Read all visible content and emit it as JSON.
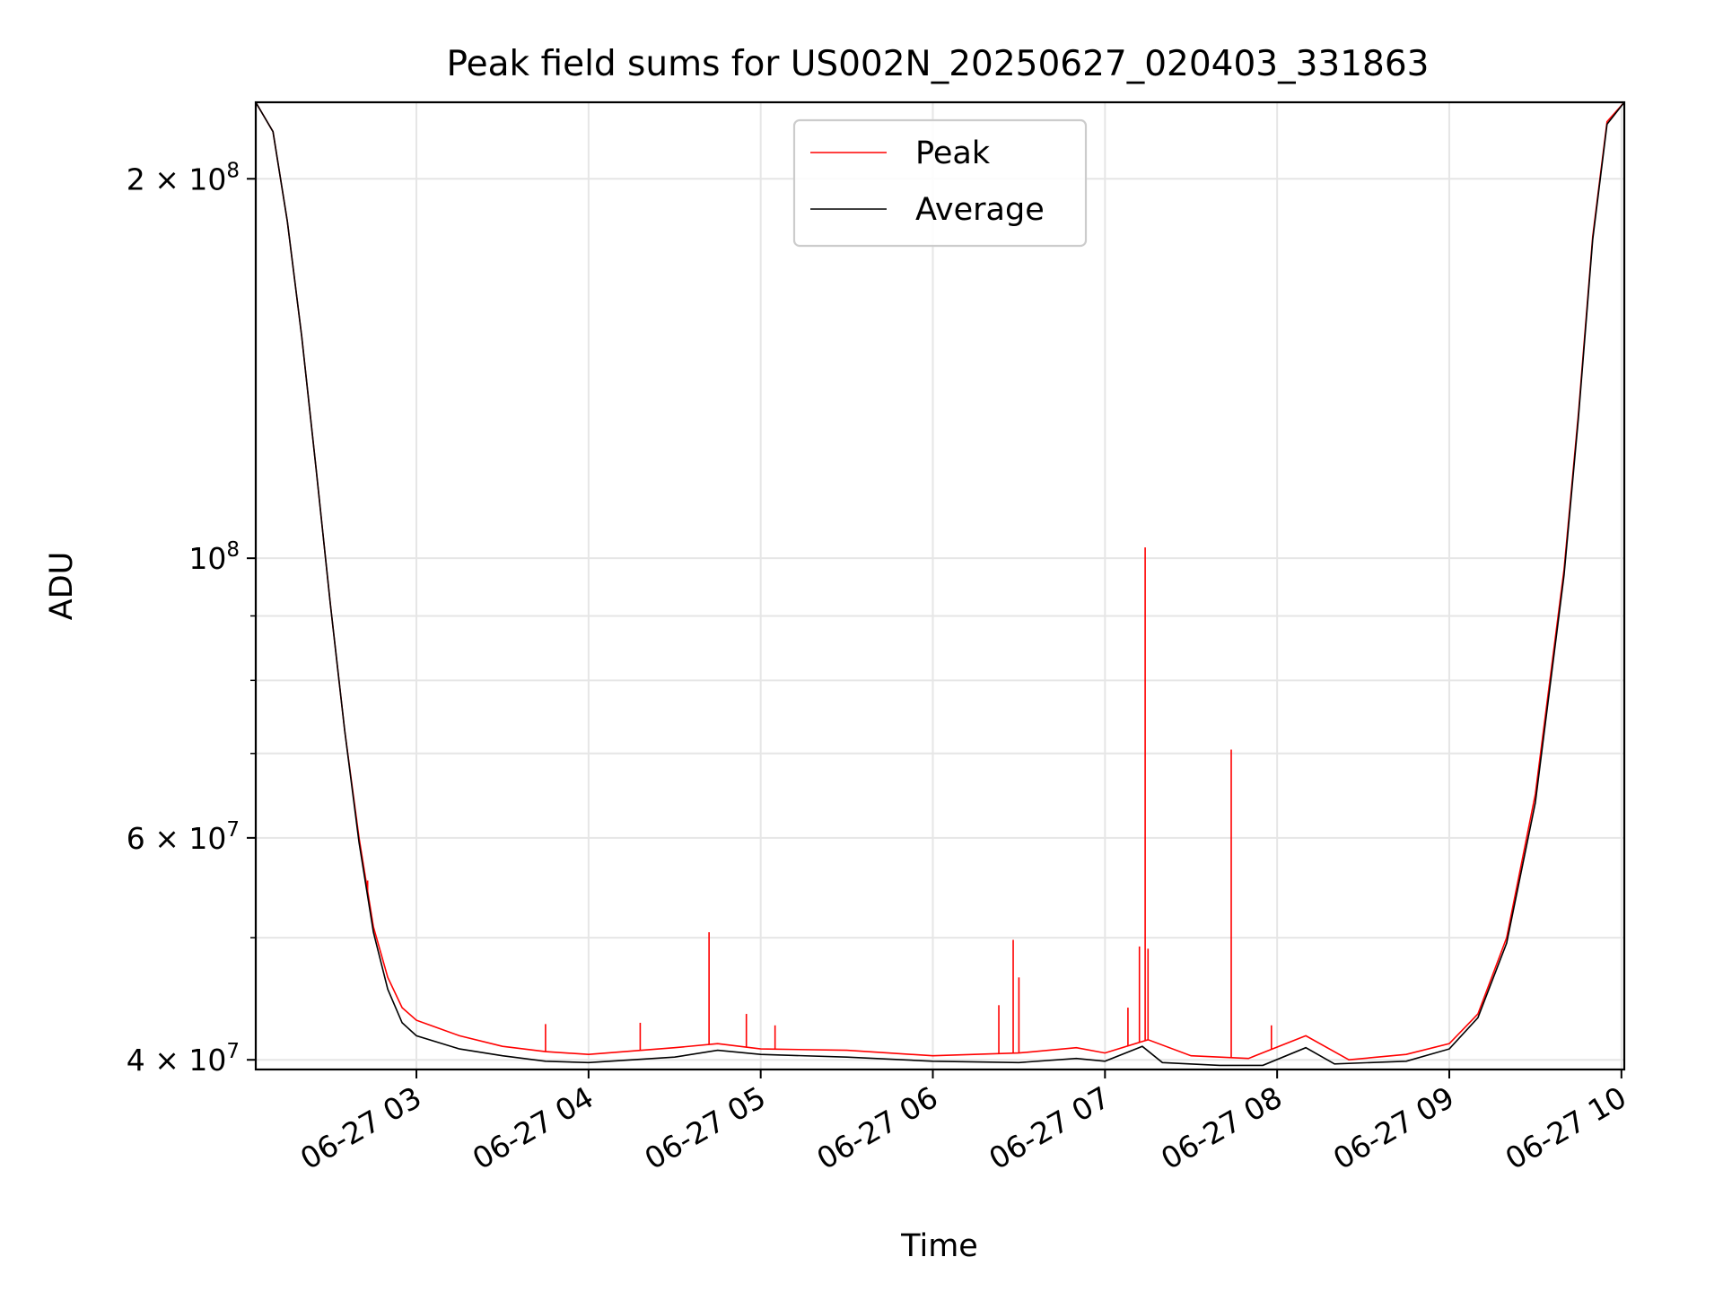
{
  "chart_data": {
    "type": "line",
    "title": "Peak field sums for US002N_20250627_020403_331863",
    "xlabel": "Time",
    "ylabel": "ADU",
    "y_scale": "log",
    "ylim": [
      39300000,
      230000000
    ],
    "xlim": [
      "2025-06-27 02:04",
      "2025-06-27 10:01"
    ],
    "x_tick_labels": [
      "06-27 03",
      "06-27 04",
      "06-27 05",
      "06-27 06",
      "06-27 07",
      "06-27 08",
      "06-27 09",
      "06-27 10"
    ],
    "x_tick_values": [
      "2025-06-27 03:00",
      "2025-06-27 04:00",
      "2025-06-27 05:00",
      "2025-06-27 06:00",
      "2025-06-27 07:00",
      "2025-06-27 08:00",
      "2025-06-27 09:00",
      "2025-06-27 10:00"
    ],
    "y_major_tick_labels": [
      {
        "base": "4",
        "exp": "7",
        "value": 40000000
      },
      {
        "base": "6",
        "exp": "7",
        "value": 60000000
      },
      {
        "base": "",
        "exp": "8",
        "value": 100000000
      },
      {
        "base": "2",
        "exp": "8",
        "value": 200000000
      }
    ],
    "y_minor_ticks": [
      50000000,
      70000000,
      80000000,
      90000000
    ],
    "grid": true,
    "legend_position": "upper center",
    "series": [
      {
        "name": "Peak",
        "color": "#ff0000",
        "points": [
          [
            "2025-06-27 02:04",
            230000000
          ],
          [
            "2025-06-27 02:10",
            218000000
          ],
          [
            "2025-06-27 02:15",
            185000000
          ],
          [
            "2025-06-27 02:20",
            150000000
          ],
          [
            "2025-06-27 02:25",
            118000000
          ],
          [
            "2025-06-27 02:30",
            92000000
          ],
          [
            "2025-06-27 02:35",
            73000000
          ],
          [
            "2025-06-27 02:40",
            60000000
          ],
          [
            "2025-06-27 02:45",
            51000000
          ],
          [
            "2025-06-27 02:50",
            46500000
          ],
          [
            "2025-06-27 02:55",
            44000000
          ],
          [
            "2025-06-27 03:00",
            43000000
          ],
          [
            "2025-06-27 03:15",
            41800000
          ],
          [
            "2025-06-27 03:30",
            41000000
          ],
          [
            "2025-06-27 03:45",
            40600000
          ],
          [
            "2025-06-27 04:00",
            40400000
          ],
          [
            "2025-06-27 04:30",
            40900000
          ],
          [
            "2025-06-27 04:45",
            41200000
          ],
          [
            "2025-06-27 05:00",
            40800000
          ],
          [
            "2025-06-27 05:30",
            40700000
          ],
          [
            "2025-06-27 06:00",
            40300000
          ],
          [
            "2025-06-27 06:30",
            40500000
          ],
          [
            "2025-06-27 06:50",
            40900000
          ],
          [
            "2025-06-27 07:00",
            40500000
          ],
          [
            "2025-06-27 07:15",
            41500000
          ],
          [
            "2025-06-27 07:30",
            40300000
          ],
          [
            "2025-06-27 07:50",
            40100000
          ],
          [
            "2025-06-27 08:10",
            41800000
          ],
          [
            "2025-06-27 08:25",
            40000000
          ],
          [
            "2025-06-27 08:45",
            40400000
          ],
          [
            "2025-06-27 09:00",
            41200000
          ],
          [
            "2025-06-27 09:10",
            43500000
          ],
          [
            "2025-06-27 09:20",
            50000000
          ],
          [
            "2025-06-27 09:30",
            65000000
          ],
          [
            "2025-06-27 09:40",
            98000000
          ],
          [
            "2025-06-27 09:45",
            130000000
          ],
          [
            "2025-06-27 09:50",
            180000000
          ],
          [
            "2025-06-27 09:55",
            222000000
          ],
          [
            "2025-06-27 10:01",
            230000000
          ]
        ],
        "spikes": [
          [
            "2025-06-27 02:43",
            55500000
          ],
          [
            "2025-06-27 03:45",
            42700000
          ],
          [
            "2025-06-27 04:18",
            42800000
          ],
          [
            "2025-06-27 04:42",
            50500000
          ],
          [
            "2025-06-27 04:55",
            43500000
          ],
          [
            "2025-06-27 05:05",
            42600000
          ],
          [
            "2025-06-27 06:23",
            44200000
          ],
          [
            "2025-06-27 06:28",
            49800000
          ],
          [
            "2025-06-27 06:30",
            46500000
          ],
          [
            "2025-06-27 07:08",
            44000000
          ],
          [
            "2025-06-27 07:12",
            49200000
          ],
          [
            "2025-06-27 07:15",
            49000000
          ],
          [
            "2025-06-27 07:14",
            102000000
          ],
          [
            "2025-06-27 07:44",
            70500000
          ],
          [
            "2025-06-27 07:58",
            42600000
          ]
        ]
      },
      {
        "name": "Average",
        "color": "#000000",
        "points": [
          [
            "2025-06-27 02:04",
            230000000
          ],
          [
            "2025-06-27 02:10",
            218000000
          ],
          [
            "2025-06-27 02:15",
            185000000
          ],
          [
            "2025-06-27 02:20",
            150000000
          ],
          [
            "2025-06-27 02:25",
            118000000
          ],
          [
            "2025-06-27 02:30",
            92000000
          ],
          [
            "2025-06-27 02:35",
            73000000
          ],
          [
            "2025-06-27 02:40",
            59500000
          ],
          [
            "2025-06-27 02:45",
            50500000
          ],
          [
            "2025-06-27 02:50",
            45500000
          ],
          [
            "2025-06-27 02:55",
            42800000
          ],
          [
            "2025-06-27 03:00",
            41800000
          ],
          [
            "2025-06-27 03:15",
            40800000
          ],
          [
            "2025-06-27 03:30",
            40300000
          ],
          [
            "2025-06-27 03:45",
            39900000
          ],
          [
            "2025-06-27 04:00",
            39800000
          ],
          [
            "2025-06-27 04:30",
            40200000
          ],
          [
            "2025-06-27 04:45",
            40700000
          ],
          [
            "2025-06-27 05:00",
            40400000
          ],
          [
            "2025-06-27 05:30",
            40200000
          ],
          [
            "2025-06-27 06:00",
            39900000
          ],
          [
            "2025-06-27 06:30",
            39800000
          ],
          [
            "2025-06-27 06:50",
            40100000
          ],
          [
            "2025-06-27 07:00",
            39900000
          ],
          [
            "2025-06-27 07:13",
            41000000
          ],
          [
            "2025-06-27 07:20",
            39800000
          ],
          [
            "2025-06-27 07:40",
            39600000
          ],
          [
            "2025-06-27 07:55",
            39600000
          ],
          [
            "2025-06-27 08:10",
            40900000
          ],
          [
            "2025-06-27 08:20",
            39700000
          ],
          [
            "2025-06-27 08:45",
            39900000
          ],
          [
            "2025-06-27 09:00",
            40800000
          ],
          [
            "2025-06-27 09:10",
            43200000
          ],
          [
            "2025-06-27 09:20",
            49500000
          ],
          [
            "2025-06-27 09:30",
            64000000
          ],
          [
            "2025-06-27 09:40",
            97000000
          ],
          [
            "2025-06-27 09:45",
            129000000
          ],
          [
            "2025-06-27 09:50",
            179000000
          ],
          [
            "2025-06-27 09:55",
            221000000
          ],
          [
            "2025-06-27 10:01",
            230000000
          ]
        ]
      }
    ]
  }
}
